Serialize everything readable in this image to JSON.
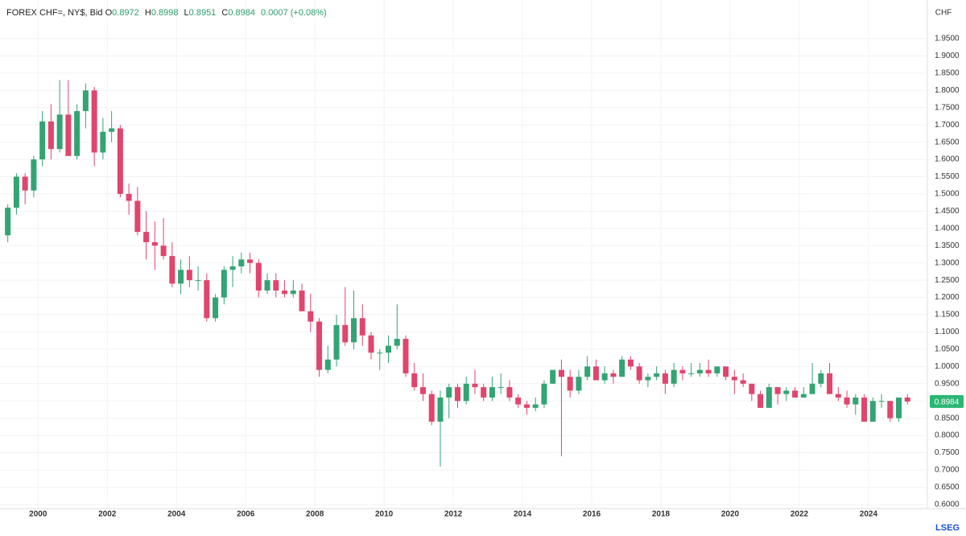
{
  "chart_data": {
    "type": "candlestick",
    "legend_header": {
      "symbol": "FOREX CHF=, NY$, Bid",
      "open_key": "O",
      "open": "0.8972",
      "high_key": "H",
      "high": "0.8998",
      "low_key": "L",
      "low": "0.8951",
      "close_key": "C",
      "close": "0.8984",
      "change": "0.0007 (+0.08%)"
    },
    "y_axis_label": "CHF",
    "brand": "LSEG",
    "up_color": "#33a474",
    "down_color": "#e0456d",
    "grid": true,
    "xlim": [
      1998.9,
      2025.7
    ],
    "xticks": [
      2000,
      2002,
      2004,
      2006,
      2008,
      2010,
      2012,
      2014,
      2016,
      2018,
      2020,
      2022,
      2024
    ],
    "ylim": [
      0.588,
      1.992
    ],
    "yticks": [
      {
        "value": 0.6,
        "label": "0.6000"
      },
      {
        "value": 0.65,
        "label": "0.6500"
      },
      {
        "value": 0.7,
        "label": "0.7000"
      },
      {
        "value": 0.75,
        "label": "0.7500"
      },
      {
        "value": 0.8,
        "label": "0.8000"
      },
      {
        "value": 0.85,
        "label": "0.8500"
      },
      {
        "value": 0.9,
        "label": "0.9000"
      },
      {
        "value": 0.95,
        "label": "0.9500"
      },
      {
        "value": 1.0,
        "label": "1.0000"
      },
      {
        "value": 1.05,
        "label": "1.0500"
      },
      {
        "value": 1.1,
        "label": "1.1000"
      },
      {
        "value": 1.15,
        "label": "1.1500"
      },
      {
        "value": 1.2,
        "label": "1.2000"
      },
      {
        "value": 1.25,
        "label": "1.2500"
      },
      {
        "value": 1.3,
        "label": "1.3000"
      },
      {
        "value": 1.35,
        "label": "1.3500"
      },
      {
        "value": 1.4,
        "label": "1.4000"
      },
      {
        "value": 1.45,
        "label": "1.4500"
      },
      {
        "value": 1.5,
        "label": "1.5000"
      },
      {
        "value": 1.55,
        "label": "1.5500"
      },
      {
        "value": 1.6,
        "label": "1.6000"
      },
      {
        "value": 1.65,
        "label": "1.6500"
      },
      {
        "value": 1.7,
        "label": "1.7000"
      },
      {
        "value": 1.75,
        "label": "1.7500"
      },
      {
        "value": 1.8,
        "label": "1.8000"
      },
      {
        "value": 1.85,
        "label": "1.8500"
      },
      {
        "value": 1.9,
        "label": "1.9000"
      },
      {
        "value": 1.95,
        "label": "1.9500"
      }
    ],
    "last_price": 0.8984,
    "x": [
      1999.125,
      1999.375,
      1999.625,
      1999.875,
      2000.125,
      2000.375,
      2000.625,
      2000.875,
      2001.125,
      2001.375,
      2001.625,
      2001.875,
      2002.125,
      2002.375,
      2002.625,
      2002.875,
      2003.125,
      2003.375,
      2003.625,
      2003.875,
      2004.125,
      2004.375,
      2004.625,
      2004.875,
      2005.125,
      2005.375,
      2005.625,
      2005.875,
      2006.125,
      2006.375,
      2006.625,
      2006.875,
      2007.125,
      2007.375,
      2007.625,
      2007.875,
      2008.125,
      2008.375,
      2008.625,
      2008.875,
      2009.125,
      2009.375,
      2009.625,
      2009.875,
      2010.125,
      2010.375,
      2010.625,
      2010.875,
      2011.125,
      2011.375,
      2011.625,
      2011.875,
      2012.125,
      2012.375,
      2012.625,
      2012.875,
      2013.125,
      2013.375,
      2013.625,
      2013.875,
      2014.125,
      2014.375,
      2014.625,
      2014.875,
      2015.125,
      2015.375,
      2015.625,
      2015.875,
      2016.125,
      2016.375,
      2016.625,
      2016.875,
      2017.125,
      2017.375,
      2017.625,
      2017.875,
      2018.125,
      2018.375,
      2018.625,
      2018.875,
      2019.125,
      2019.375,
      2019.625,
      2019.875,
      2020.125,
      2020.375,
      2020.625,
      2020.875,
      2021.125,
      2021.375,
      2021.625,
      2021.875,
      2022.125,
      2022.375,
      2022.625,
      2022.875,
      2023.125,
      2023.375,
      2023.625,
      2023.875,
      2024.125,
      2024.375,
      2024.625,
      2024.875,
      2025.125
    ],
    "open": [
      1.38,
      1.46,
      1.55,
      1.51,
      1.6,
      1.71,
      1.63,
      1.73,
      1.61,
      1.74,
      1.8,
      1.62,
      1.68,
      1.69,
      1.5,
      1.48,
      1.39,
      1.36,
      1.35,
      1.32,
      1.24,
      1.28,
      1.25,
      1.25,
      1.14,
      1.2,
      1.28,
      1.29,
      1.31,
      1.3,
      1.22,
      1.25,
      1.22,
      1.21,
      1.22,
      1.16,
      1.13,
      0.99,
      1.02,
      1.12,
      1.07,
      1.14,
      1.09,
      1.04,
      1.04,
      1.06,
      1.08,
      0.98,
      0.94,
      0.92,
      0.84,
      0.91,
      0.94,
      0.9,
      0.95,
      0.94,
      0.91,
      0.94,
      0.94,
      0.91,
      0.89,
      0.88,
      0.89,
      0.95,
      0.99,
      0.97,
      0.93,
      0.97,
      1.0,
      0.96,
      0.98,
      0.97,
      1.02,
      1.0,
      0.96,
      0.97,
      0.98,
      0.95,
      0.99,
      0.98,
      0.98,
      0.99,
      0.98,
      1.0,
      0.97,
      0.96,
      0.95,
      0.92,
      0.88,
      0.94,
      0.92,
      0.93,
      0.91,
      0.92,
      0.95,
      0.98,
      0.92,
      0.91,
      0.89,
      0.91,
      0.84,
      0.9,
      0.9,
      0.85,
      0.91
    ],
    "high": [
      1.47,
      1.56,
      1.56,
      1.61,
      1.74,
      1.76,
      1.83,
      1.83,
      1.76,
      1.82,
      1.81,
      1.72,
      1.74,
      1.7,
      1.53,
      1.52,
      1.45,
      1.42,
      1.43,
      1.36,
      1.31,
      1.32,
      1.29,
      1.27,
      1.21,
      1.29,
      1.32,
      1.33,
      1.33,
      1.31,
      1.27,
      1.27,
      1.25,
      1.25,
      1.24,
      1.21,
      1.14,
      1.06,
      1.15,
      1.23,
      1.22,
      1.18,
      1.1,
      1.05,
      1.09,
      1.18,
      1.09,
      1.01,
      0.98,
      0.93,
      0.93,
      0.95,
      0.95,
      0.97,
      0.99,
      0.95,
      0.97,
      0.98,
      0.96,
      0.92,
      0.9,
      0.91,
      0.96,
      0.99,
      1.02,
      0.99,
      0.99,
      1.03,
      1.02,
      1.0,
      0.99,
      1.03,
      1.03,
      1.01,
      0.98,
      1.0,
      0.99,
      1.01,
      1.0,
      1.01,
      1.01,
      1.02,
      1.0,
      1.0,
      0.99,
      0.98,
      0.95,
      0.93,
      0.95,
      0.94,
      0.94,
      0.94,
      0.94,
      1.01,
      0.99,
      1.01,
      0.94,
      0.93,
      0.92,
      0.92,
      0.91,
      0.92,
      0.9,
      0.91,
      0.92
    ],
    "low": [
      1.36,
      1.44,
      1.47,
      1.49,
      1.58,
      1.6,
      1.62,
      1.61,
      1.6,
      1.69,
      1.58,
      1.6,
      1.65,
      1.49,
      1.44,
      1.38,
      1.31,
      1.28,
      1.31,
      1.23,
      1.21,
      1.23,
      1.22,
      1.13,
      1.13,
      1.18,
      1.23,
      1.27,
      1.27,
      1.2,
      1.21,
      1.2,
      1.2,
      1.2,
      1.16,
      1.1,
      0.97,
      0.98,
      1.0,
      1.06,
      1.05,
      1.06,
      1.02,
      0.99,
      1.01,
      1.05,
      0.97,
      0.93,
      0.9,
      0.83,
      0.71,
      0.85,
      0.88,
      0.89,
      0.92,
      0.9,
      0.9,
      0.92,
      0.9,
      0.88,
      0.86,
      0.87,
      0.88,
      0.95,
      0.74,
      0.91,
      0.92,
      0.96,
      0.96,
      0.95,
      0.95,
      0.97,
      0.99,
      0.95,
      0.94,
      0.96,
      0.92,
      0.94,
      0.96,
      0.97,
      0.97,
      0.97,
      0.97,
      0.96,
      0.92,
      0.94,
      0.9,
      0.88,
      0.88,
      0.89,
      0.9,
      0.91,
      0.91,
      0.92,
      0.94,
      0.92,
      0.9,
      0.88,
      0.86,
      0.84,
      0.84,
      0.88,
      0.84,
      0.84,
      0.89
    ],
    "close": [
      1.46,
      1.55,
      1.51,
      1.6,
      1.71,
      1.63,
      1.73,
      1.61,
      1.74,
      1.8,
      1.62,
      1.68,
      1.69,
      1.5,
      1.48,
      1.39,
      1.36,
      1.35,
      1.32,
      1.24,
      1.28,
      1.25,
      1.25,
      1.14,
      1.2,
      1.28,
      1.29,
      1.31,
      1.3,
      1.22,
      1.25,
      1.22,
      1.21,
      1.22,
      1.16,
      1.13,
      0.99,
      1.02,
      1.12,
      1.07,
      1.14,
      1.09,
      1.04,
      1.04,
      1.06,
      1.08,
      0.98,
      0.94,
      0.92,
      0.84,
      0.91,
      0.94,
      0.9,
      0.95,
      0.94,
      0.91,
      0.94,
      0.94,
      0.91,
      0.89,
      0.88,
      0.89,
      0.95,
      0.99,
      0.97,
      0.93,
      0.97,
      1.0,
      0.96,
      0.98,
      0.97,
      1.02,
      1.0,
      0.96,
      0.97,
      0.98,
      0.95,
      0.99,
      0.98,
      0.98,
      0.99,
      0.98,
      1.0,
      0.97,
      0.96,
      0.95,
      0.92,
      0.88,
      0.94,
      0.92,
      0.93,
      0.91,
      0.92,
      0.95,
      0.98,
      0.92,
      0.91,
      0.89,
      0.91,
      0.84,
      0.9,
      0.9,
      0.85,
      0.91,
      0.8984
    ]
  }
}
